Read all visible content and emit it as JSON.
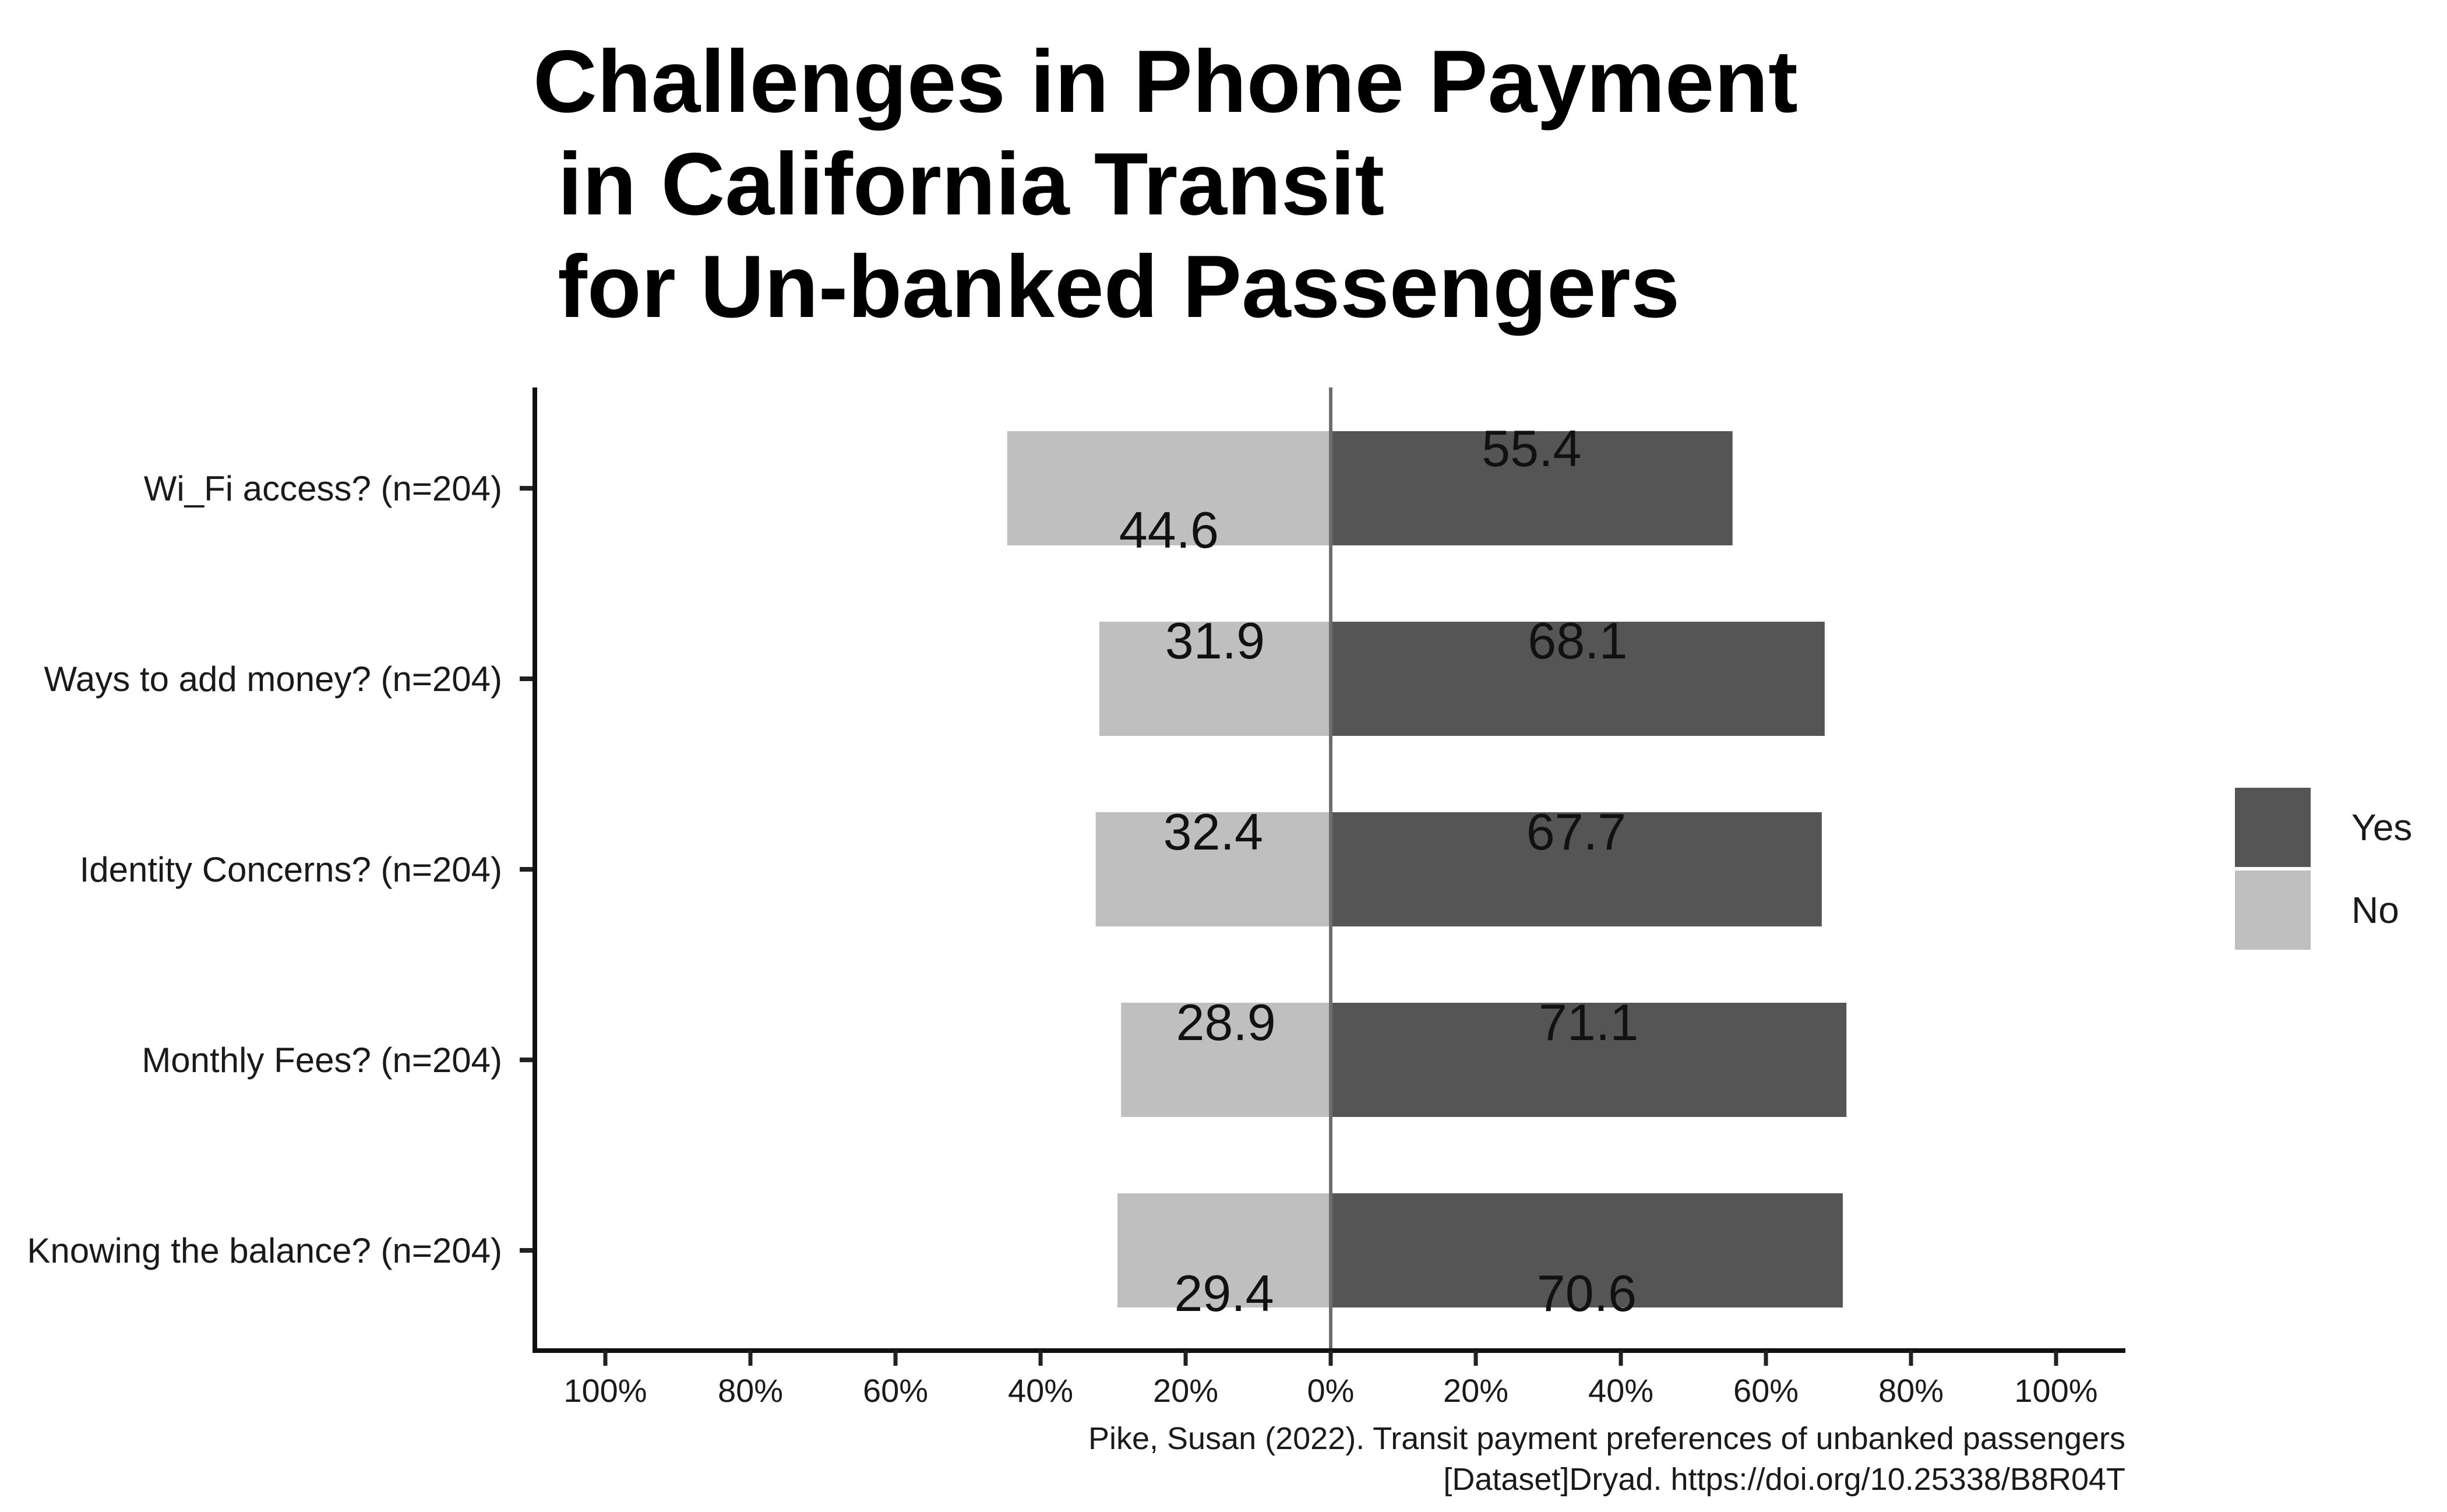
{
  "chart_data": {
    "type": "bar",
    "orientation": "horizontal-diverging",
    "title_lines": [
      "Challenges in Phone Payment",
      " in California Transit",
      " for Un-banked Passengers"
    ],
    "categories": [
      "Wi_Fi access? (n=204)",
      "Ways to add money? (n=204)",
      "Identity Concerns? (n=204)",
      "Monthly Fees? (n=204)",
      "Knowing the balance? (n=204)"
    ],
    "series": [
      {
        "name": "Yes",
        "color": "#555555",
        "values": [
          55.4,
          68.1,
          67.7,
          71.1,
          70.6
        ],
        "labels": [
          "55.4",
          "68.1",
          "67.7",
          "71.1",
          "70.6"
        ]
      },
      {
        "name": "No",
        "color": "#bfbfbf",
        "values": [
          44.6,
          31.9,
          32.4,
          28.9,
          29.4
        ],
        "labels": [
          "44.6",
          "31.9",
          "32.4",
          "28.9",
          "29.4"
        ]
      }
    ],
    "xlim": [
      -100,
      100
    ],
    "xticks": [
      -100,
      -80,
      -60,
      -40,
      -20,
      0,
      20,
      40,
      60,
      80,
      100
    ],
    "xtick_labels": [
      "100%",
      "80%",
      "60%",
      "40%",
      "20%",
      "0%",
      "20%",
      "40%",
      "60%",
      "80%",
      "100%"
    ],
    "xlabel": "",
    "ylabel": "",
    "legend": {
      "position": "right",
      "entries": [
        "Yes",
        "No"
      ]
    },
    "caption_lines": [
      "Pike, Susan (2022). Transit payment preferences of unbanked passengers",
      "[Dataset]Dryad. https://doi.org/10.25338/B8R04T"
    ]
  }
}
